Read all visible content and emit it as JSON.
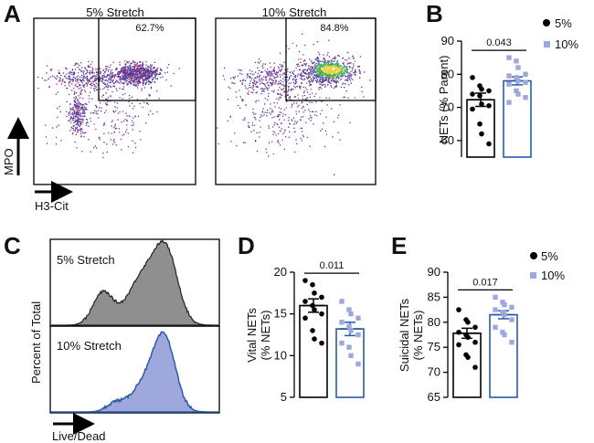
{
  "panels": {
    "a": "A",
    "b": "B",
    "c": "C",
    "d": "D",
    "e": "E"
  },
  "flow": {
    "titles": [
      "5% Stretch",
      "10% Stretch"
    ],
    "gate_percents": [
      "62.7%",
      "84.8%"
    ],
    "y_axis_label": "MPO",
    "x_axis_label": "H3-Cit"
  },
  "histogram": {
    "labels": [
      "5% Stretch",
      "10% Stretch"
    ],
    "y_axis_label": "Percent of Total",
    "x_axis_label": "Live/Dead",
    "colors": {
      "five": "#8f8f8f",
      "ten": "#9fa8dd",
      "ten_line": "#2a5aa8"
    }
  },
  "legend": {
    "entries": [
      {
        "label": "5%",
        "color": "#000000",
        "shape": "circle"
      },
      {
        "label": "10%",
        "color": "#9fa8dd",
        "shape": "square"
      }
    ]
  },
  "chart_data": [
    {
      "panel": "B",
      "type": "bar",
      "ylabel": "NETs (% Parent)",
      "ylim": [
        55,
        90
      ],
      "yticks": [
        60,
        70,
        80,
        90
      ],
      "series": [
        {
          "name": "5%",
          "mean": 72.3,
          "sem": 2.0,
          "points": [
            79,
            76.5,
            75.5,
            75,
            74,
            73.5,
            71,
            70.5,
            69.5,
            65,
            62,
            59
          ]
        },
        {
          "name": "10%",
          "mean": 78.0,
          "sem": 1.2,
          "points": [
            85,
            84,
            82,
            80,
            79.5,
            79,
            78,
            77.5,
            77,
            75,
            74,
            73,
            71.5
          ]
        }
      ],
      "pvalue": "0.043"
    },
    {
      "panel": "D",
      "type": "bar",
      "ylabel": "Vital NETs (% NETs)",
      "ylim": [
        5,
        20
      ],
      "yticks": [
        5,
        10,
        15,
        20
      ],
      "series": [
        {
          "name": "5%",
          "mean": 16.0,
          "sem": 0.8,
          "points": [
            19,
            18.5,
            17.5,
            17,
            16.5,
            16,
            15.5,
            15,
            14.5,
            13,
            12,
            11.5
          ]
        },
        {
          "name": "10%",
          "mean": 13.2,
          "sem": 0.8,
          "points": [
            16.5,
            15.5,
            15,
            14.5,
            14,
            13.5,
            13,
            12.5,
            11.5,
            11,
            10,
            9
          ]
        }
      ],
      "pvalue": "0.011"
    },
    {
      "panel": "E",
      "type": "bar",
      "ylabel": "Suicidal NETs (% NETs)",
      "ylim": [
        65,
        90
      ],
      "yticks": [
        65,
        70,
        75,
        80,
        85,
        90
      ],
      "series": [
        {
          "name": "5%",
          "mean": 77.8,
          "sem": 1.0,
          "points": [
            82.5,
            80.5,
            80,
            79,
            78,
            77.5,
            77,
            76,
            75.5,
            73.5,
            73,
            71
          ]
        },
        {
          "name": "10%",
          "mean": 81.5,
          "sem": 0.8,
          "points": [
            85,
            84,
            83.5,
            83,
            82.5,
            82,
            81.5,
            80.5,
            79,
            78,
            77.5,
            76
          ]
        }
      ],
      "pvalue": "0.017"
    }
  ]
}
